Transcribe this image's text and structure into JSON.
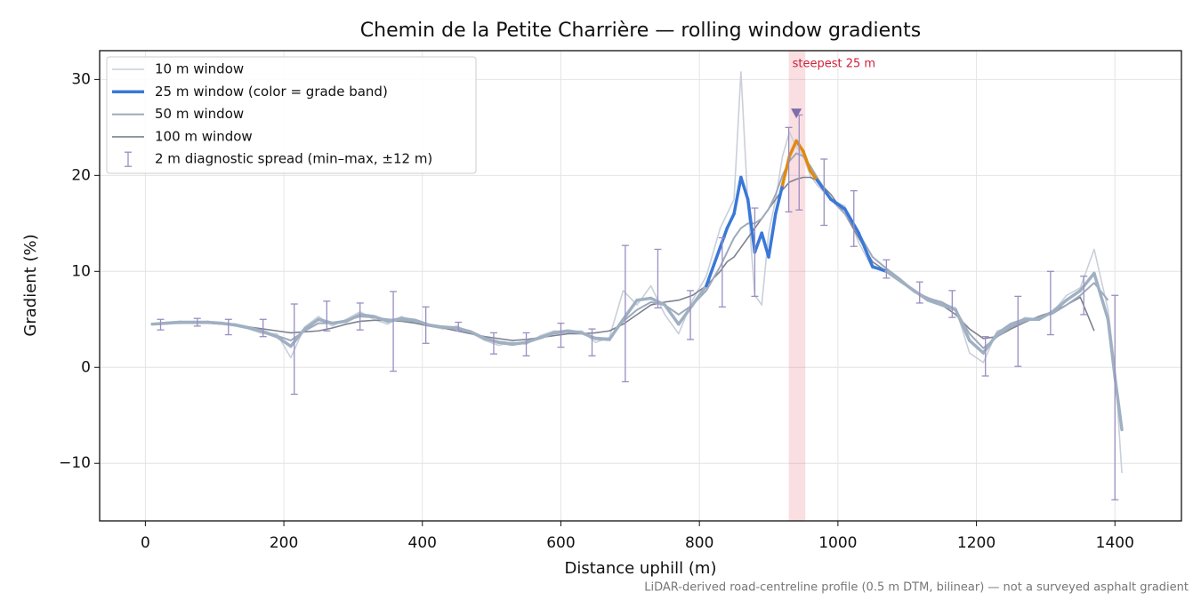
{
  "chart_data": {
    "type": "line",
    "title": "Chemin de la Petite Charrière — rolling window gradients",
    "xlabel": "Distance uphill (m)",
    "ylabel": "Gradient (%)",
    "note": "LiDAR-derived road-centreline profile (0.5 m DTM, bilinear) — not a surveyed asphalt gradient",
    "xlim": [
      -66,
      1496
    ],
    "ylim": [
      -16,
      33
    ],
    "xticks": [
      0,
      200,
      400,
      600,
      800,
      1000,
      1200,
      1400
    ],
    "yticks": [
      {
        "value": -10,
        "label": "−10"
      },
      0,
      10,
      20,
      30
    ],
    "grid": true,
    "legend": "upper left",
    "x": [
      10,
      30,
      50,
      70,
      90,
      110,
      130,
      150,
      170,
      190,
      210,
      230,
      250,
      270,
      290,
      310,
      330,
      350,
      370,
      390,
      410,
      430,
      450,
      470,
      490,
      510,
      530,
      550,
      570,
      590,
      610,
      630,
      650,
      670,
      690,
      710,
      730,
      750,
      770,
      790,
      810,
      830,
      840,
      850,
      860,
      870,
      880,
      890,
      900,
      910,
      920,
      930,
      940,
      950,
      960,
      970,
      990,
      1010,
      1030,
      1050,
      1070,
      1090,
      1110,
      1130,
      1150,
      1170,
      1190,
      1210,
      1230,
      1250,
      1270,
      1290,
      1310,
      1330,
      1350,
      1370,
      1390,
      1400,
      1410
    ],
    "series": [
      {
        "name": "10 m window",
        "color": "#c8d0da",
        "line_width": 1.6,
        "values": [
          4.5,
          4.7,
          4.8,
          4.6,
          4.8,
          4.5,
          4.5,
          4.0,
          3.5,
          3.5,
          1.0,
          4.2,
          5.3,
          4.3,
          5.0,
          5.8,
          5.0,
          4.5,
          5.3,
          4.6,
          4.3,
          4.0,
          4.3,
          3.6,
          2.8,
          2.3,
          2.6,
          2.4,
          3.3,
          3.8,
          3.7,
          3.8,
          2.6,
          3.1,
          8.0,
          6.5,
          8.5,
          5.5,
          3.5,
          7.0,
          9.5,
          14.5,
          16.0,
          17.5,
          30.8,
          17.0,
          7.5,
          6.5,
          14.0,
          17.5,
          22.0,
          24.5,
          23.0,
          22.0,
          20.0,
          19.0,
          17.5,
          16.8,
          13.0,
          10.3,
          10.2,
          9.0,
          7.8,
          7.3,
          6.7,
          6.2,
          1.5,
          0.5,
          3.8,
          4.2,
          5.2,
          5.0,
          5.7,
          7.5,
          8.3,
          12.3,
          6.0,
          0.0,
          -11.0
        ]
      },
      {
        "name": "25 m window (color = grade band)",
        "color": "#3a78d8",
        "line_width": 3.5,
        "band_edges": [
          10,
          20
        ],
        "band_colors": [
          "#a0b0c3",
          "#3a78d8",
          "#e08a10"
        ],
        "values": [
          4.5,
          4.6,
          4.7,
          4.7,
          4.7,
          4.6,
          4.4,
          4.1,
          3.7,
          3.2,
          2.2,
          4.0,
          5.0,
          4.6,
          4.8,
          5.5,
          5.3,
          4.8,
          5.1,
          4.9,
          4.4,
          4.2,
          4.1,
          3.7,
          3.0,
          2.6,
          2.4,
          2.6,
          3.1,
          3.6,
          3.8,
          3.6,
          3.0,
          2.9,
          5.0,
          7.0,
          7.2,
          6.5,
          4.5,
          6.5,
          8.5,
          12.5,
          14.5,
          16.0,
          19.8,
          17.5,
          12.0,
          14.0,
          11.5,
          16.0,
          19.0,
          22.0,
          23.6,
          22.5,
          20.5,
          19.5,
          17.5,
          16.5,
          14.0,
          10.5,
          10.0,
          9.0,
          8.0,
          7.0,
          6.5,
          6.0,
          2.8,
          1.5,
          3.5,
          4.5,
          5.0,
          5.0,
          5.8,
          7.0,
          8.0,
          9.8,
          5.0,
          -1.0,
          -6.5
        ]
      },
      {
        "name": "50 m window",
        "color": "#9eaabb",
        "line_width": 2,
        "values": [
          4.5,
          4.6,
          4.6,
          4.7,
          4.7,
          4.6,
          4.5,
          4.2,
          3.8,
          3.3,
          2.8,
          3.8,
          4.6,
          4.6,
          4.9,
          5.3,
          5.2,
          5.0,
          4.9,
          4.8,
          4.4,
          4.2,
          4.0,
          3.7,
          3.1,
          2.7,
          2.5,
          2.6,
          3.0,
          3.5,
          3.7,
          3.6,
          3.1,
          3.0,
          4.8,
          6.0,
          6.8,
          6.5,
          5.5,
          6.5,
          8.0,
          10.5,
          12.0,
          13.5,
          14.5,
          15.0,
          15.0,
          15.5,
          16.5,
          18.0,
          20.0,
          21.5,
          22.3,
          22.0,
          21.0,
          19.8,
          17.5,
          16.0,
          14.0,
          11.5,
          10.3,
          9.2,
          8.0,
          7.2,
          6.8,
          6.0,
          3.5,
          2.0,
          3.2,
          4.2,
          4.8,
          5.2,
          5.6,
          6.5,
          7.5,
          8.8,
          7.0,
          null,
          null
        ]
      },
      {
        "name": "100 m window",
        "color": "#7d8291",
        "line_width": 1.6,
        "values": [
          4.5,
          4.6,
          4.6,
          4.6,
          4.6,
          4.5,
          4.4,
          4.2,
          4.0,
          3.8,
          3.6,
          3.7,
          3.8,
          4.1,
          4.5,
          4.8,
          4.9,
          4.9,
          4.8,
          4.6,
          4.3,
          4.1,
          3.8,
          3.5,
          3.2,
          3.0,
          2.8,
          2.9,
          3.1,
          3.3,
          3.5,
          3.5,
          3.6,
          3.8,
          4.5,
          5.5,
          6.5,
          6.8,
          7.0,
          7.5,
          8.5,
          10.0,
          11.0,
          11.5,
          12.5,
          13.5,
          14.5,
          15.5,
          16.5,
          17.5,
          18.5,
          19.3,
          19.6,
          19.8,
          19.8,
          19.5,
          18.0,
          16.0,
          13.5,
          11.0,
          10.0,
          9.0,
          8.0,
          7.2,
          6.5,
          5.5,
          4.0,
          3.0,
          3.2,
          4.0,
          4.7,
          5.3,
          5.8,
          6.5,
          7.3,
          3.8,
          null,
          null,
          null
        ]
      }
    ],
    "errorbars": {
      "name": "2 m diagnostic spread (min–max, ±12 m)",
      "color": "#9a8ec0",
      "x": [
        22,
        75,
        120,
        170,
        215,
        262,
        310,
        358,
        405,
        452,
        503,
        550,
        600,
        645,
        693,
        740,
        787,
        833,
        880,
        929,
        944,
        980,
        1023,
        1070,
        1118,
        1165,
        1213,
        1260,
        1307,
        1355,
        1400
      ],
      "low": [
        3.9,
        4.3,
        3.4,
        3.2,
        -2.8,
        3.8,
        3.9,
        -0.4,
        2.5,
        3.8,
        1.4,
        1.2,
        2.1,
        1.2,
        -1.5,
        6.2,
        2.9,
        6.3,
        7.4,
        16.2,
        16.4,
        14.8,
        12.6,
        9.3,
        6.7,
        5.2,
        -0.9,
        0.1,
        3.4,
        5.5,
        -13.8
      ],
      "high": [
        5.0,
        5.1,
        5.0,
        5.0,
        6.6,
        6.9,
        6.7,
        7.9,
        6.3,
        4.7,
        3.6,
        3.6,
        4.6,
        4.0,
        12.7,
        12.3,
        8.0,
        13.5,
        16.6,
        25.0,
        26.3,
        21.7,
        18.4,
        11.2,
        8.9,
        8.0,
        3.2,
        7.4,
        10.0,
        9.5,
        7.5
      ]
    },
    "highlight": {
      "label": "steepest 25 m",
      "range": [
        929,
        953
      ],
      "color": "#e06070",
      "marker": {
        "x": 940,
        "y": 26.5,
        "color": "#7d6fa8"
      }
    }
  }
}
